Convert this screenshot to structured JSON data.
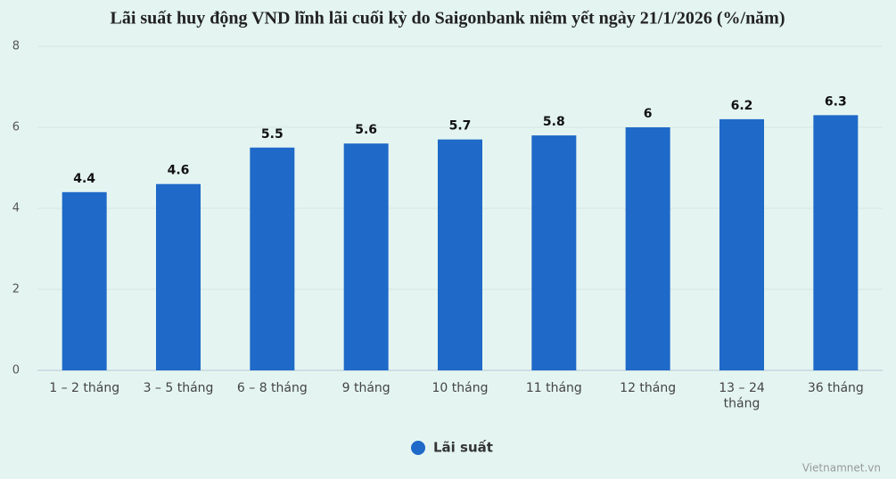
{
  "chart_data": {
    "type": "bar",
    "title": "Lãi suất huy động VND lĩnh lãi cuối kỳ do Saigonbank niêm yết ngày 21/1/2026 (%/năm)",
    "categories": [
      "1 – 2 tháng",
      "3 – 5 tháng",
      "6 – 8 tháng",
      "9 tháng",
      "10 tháng",
      "11 tháng",
      "12 tháng",
      "13 – 24 tháng",
      "36 tháng"
    ],
    "series": [
      {
        "name": "Lãi suất",
        "color": "#1f69c8",
        "values": [
          4.4,
          4.6,
          5.5,
          5.6,
          5.7,
          5.8,
          6,
          6.2,
          6.3
        ]
      }
    ],
    "ylim": [
      0,
      8
    ],
    "yticks": [
      0,
      2,
      4,
      6,
      8
    ],
    "grid": true,
    "legend": "bottom",
    "source": "Vietnamnet.vn"
  }
}
